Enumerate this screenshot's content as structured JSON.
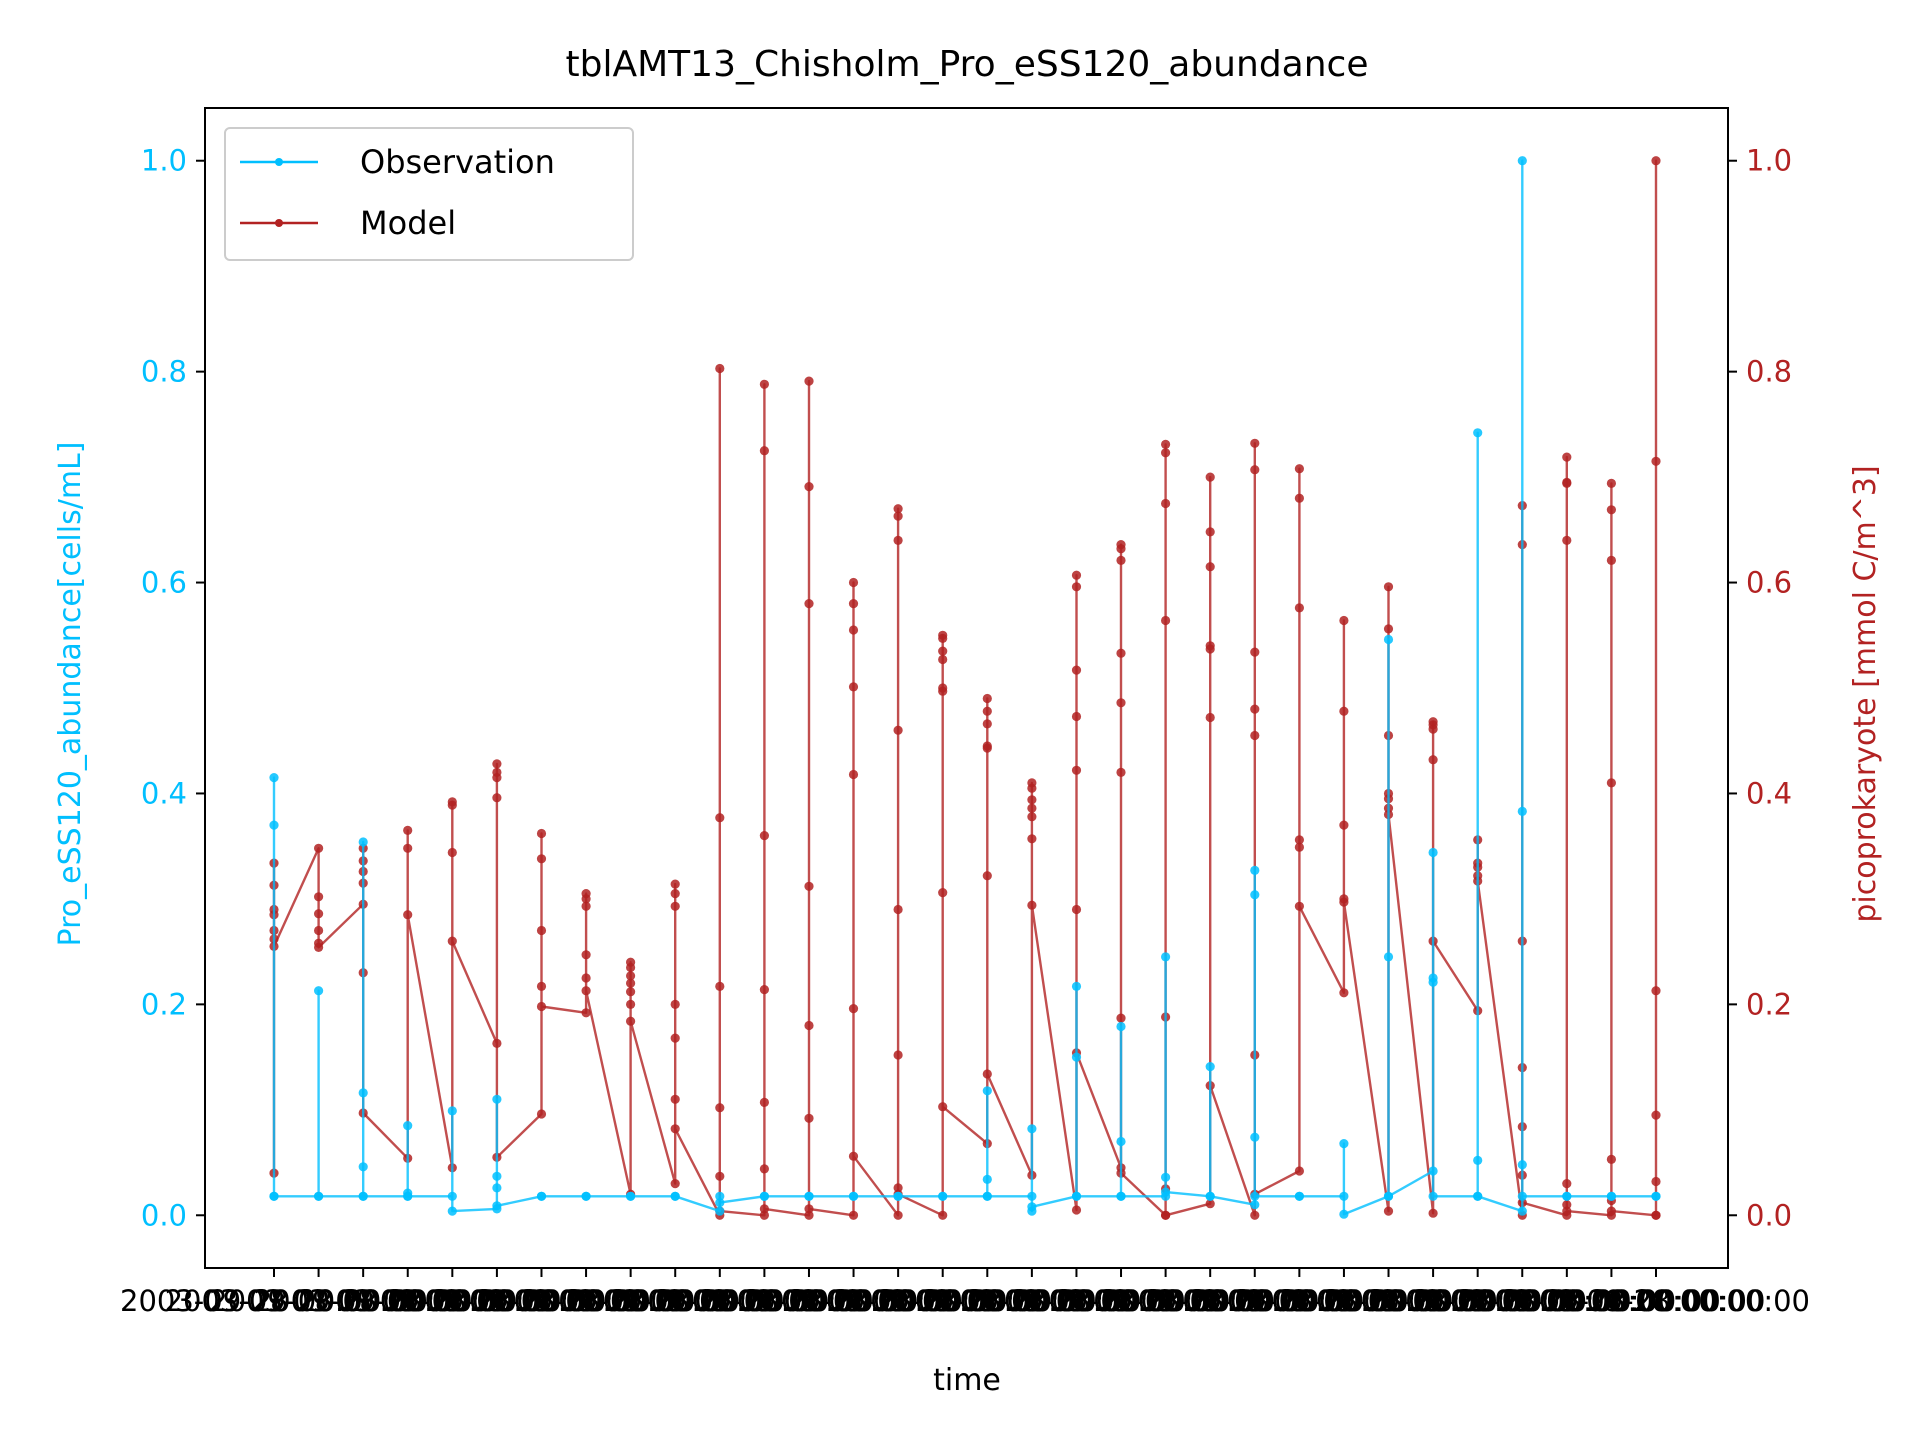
{
  "chart_data": {
    "type": "line",
    "title": "tblAMT13_Chisholm_Pro_eSS120_abundance",
    "xlabel": "time",
    "ylabel_left": "Pro_eSS120_abundance[cells/mL]",
    "ylabel_right": "picoprokaryote [mmol C/m^3]",
    "ylim_left": [
      -0.05,
      1.05
    ],
    "ylim_right": [
      -0.05,
      1.05
    ],
    "yticks": [
      0.0,
      0.2,
      0.4,
      0.6,
      0.8,
      1.0
    ],
    "ytick_labels": [
      "0.0",
      "0.2",
      "0.4",
      "0.6",
      "0.8",
      "1.0"
    ],
    "x_tick_count": 32,
    "x_tick_label": "2003-09-28 00:00:00",
    "legend": {
      "placement": "upper-left",
      "entries": [
        "Observation",
        "Model"
      ]
    },
    "colors": {
      "observation": "#00bfff",
      "model": "#b22222"
    },
    "series": [
      {
        "name": "Observation",
        "axis": "left",
        "groups": [
          [
            0.018,
            0.415,
            0.37,
            0.018
          ],
          [
            0.018,
            0.213,
            0.018
          ],
          [
            0.018,
            0.354,
            0.116,
            0.046,
            0.018
          ],
          [
            0.018,
            0.085,
            0.021,
            0.018
          ],
          [
            0.018,
            0.099,
            0.004
          ],
          [
            0.006,
            0.11,
            0.037,
            0.026,
            0.009
          ],
          [
            0.018,
            0.018
          ],
          [
            0.018,
            0.018
          ],
          [
            0.018,
            0.018
          ],
          [
            0.018,
            0.018
          ],
          [
            0.004,
            0.018,
            0.012
          ],
          [
            0.018,
            0.018
          ],
          [
            0.018,
            0.018
          ],
          [
            0.018,
            0.018
          ],
          [
            0.018,
            0.018
          ],
          [
            0.018,
            0.018
          ],
          [
            0.018,
            0.118,
            0.034,
            0.018
          ],
          [
            0.018,
            0.082,
            0.004,
            0.008
          ],
          [
            0.018,
            0.217,
            0.15,
            0.018
          ],
          [
            0.018,
            0.179,
            0.07,
            0.018
          ],
          [
            0.018,
            0.245,
            0.036,
            0.022
          ],
          [
            0.018,
            0.141,
            0.018
          ],
          [
            0.01,
            0.327,
            0.304,
            0.074,
            0.018
          ],
          [
            0.018,
            0.018
          ],
          [
            0.018,
            0.068,
            0.001
          ],
          [
            0.018,
            0.546,
            0.245,
            0.018
          ],
          [
            0.042,
            0.344,
            0.225,
            0.221,
            0.018
          ],
          [
            0.018,
            0.742,
            0.052,
            0.018
          ],
          [
            0.004,
            1.0,
            0.383,
            0.048,
            0.018
          ],
          [
            0.018,
            0.018
          ],
          [
            0.018,
            0.018
          ],
          [
            0.018,
            0.018
          ]
        ]
      },
      {
        "name": "Model",
        "axis": "right",
        "groups": [
          [
            0.04,
            0.334,
            0.313,
            0.29,
            0.285,
            0.27,
            0.262,
            0.255
          ],
          [
            0.348,
            0.302,
            0.286,
            0.27,
            0.258,
            0.254
          ],
          [
            0.295,
            0.348,
            0.336,
            0.326,
            0.315,
            0.23,
            0.097
          ],
          [
            0.054,
            0.365,
            0.348,
            0.285
          ],
          [
            0.045,
            0.392,
            0.389,
            0.344,
            0.26
          ],
          [
            0.163,
            0.428,
            0.42,
            0.415,
            0.396,
            0.055
          ],
          [
            0.096,
            0.362,
            0.338,
            0.27,
            0.217,
            0.198
          ],
          [
            0.192,
            0.305,
            0.3,
            0.293,
            0.247,
            0.225,
            0.213
          ],
          [
            0.02,
            0.24,
            0.235,
            0.227,
            0.22,
            0.212,
            0.2,
            0.184
          ],
          [
            0.03,
            0.314,
            0.305,
            0.293,
            0.2,
            0.168,
            0.11,
            0.082
          ],
          [
            0.0,
            0.803,
            0.377,
            0.217,
            0.102,
            0.037,
            0.004
          ],
          [
            0.0,
            0.788,
            0.725,
            0.36,
            0.214,
            0.107,
            0.044,
            0.006
          ],
          [
            0.0,
            0.791,
            0.691,
            0.58,
            0.312,
            0.18,
            0.092,
            0.006
          ],
          [
            0.0,
            0.6,
            0.58,
            0.555,
            0.501,
            0.418,
            0.196,
            0.056
          ],
          [
            0.0,
            0.67,
            0.663,
            0.64,
            0.46,
            0.29,
            0.152,
            0.026,
            0.02
          ],
          [
            0.0,
            0.55,
            0.547,
            0.535,
            0.527,
            0.5,
            0.497,
            0.306,
            0.103
          ],
          [
            0.068,
            0.49,
            0.478,
            0.466,
            0.445,
            0.443,
            0.322,
            0.134
          ],
          [
            0.038,
            0.41,
            0.405,
            0.394,
            0.386,
            0.378,
            0.357,
            0.294
          ],
          [
            0.005,
            0.607,
            0.596,
            0.517,
            0.473,
            0.422,
            0.29,
            0.154
          ],
          [
            0.045,
            0.636,
            0.632,
            0.621,
            0.533,
            0.486,
            0.42,
            0.187,
            0.04
          ],
          [
            0.0,
            0.731,
            0.723,
            0.675,
            0.564,
            0.188,
            0.025,
            0.0
          ],
          [
            0.011,
            0.7,
            0.648,
            0.615,
            0.54,
            0.537,
            0.472,
            0.123
          ],
          [
            0.0,
            0.732,
            0.707,
            0.534,
            0.48,
            0.455,
            0.152,
            0.02
          ],
          [
            0.042,
            0.708,
            0.68,
            0.576,
            0.356,
            0.349,
            0.293
          ],
          [
            0.211,
            0.564,
            0.478,
            0.37,
            0.3,
            0.297
          ],
          [
            0.004,
            0.596,
            0.556,
            0.455,
            0.4,
            0.395,
            0.386,
            0.38
          ],
          [
            0.002,
            0.468,
            0.465,
            0.461,
            0.432,
            0.26
          ],
          [
            0.194,
            0.356,
            0.334,
            0.33,
            0.322,
            0.317
          ],
          [
            0.0,
            0.673,
            0.636,
            0.26,
            0.14,
            0.084,
            0.038,
            0.012
          ],
          [
            0.0,
            0.719,
            0.695,
            0.694,
            0.64,
            0.03,
            0.01,
            0.004
          ],
          [
            0.0,
            0.694,
            0.669,
            0.621,
            0.41,
            0.053,
            0.014,
            0.004
          ],
          [
            0.0,
            1.0,
            0.715,
            0.213,
            0.095,
            0.032,
            0.0
          ]
        ]
      }
    ]
  }
}
